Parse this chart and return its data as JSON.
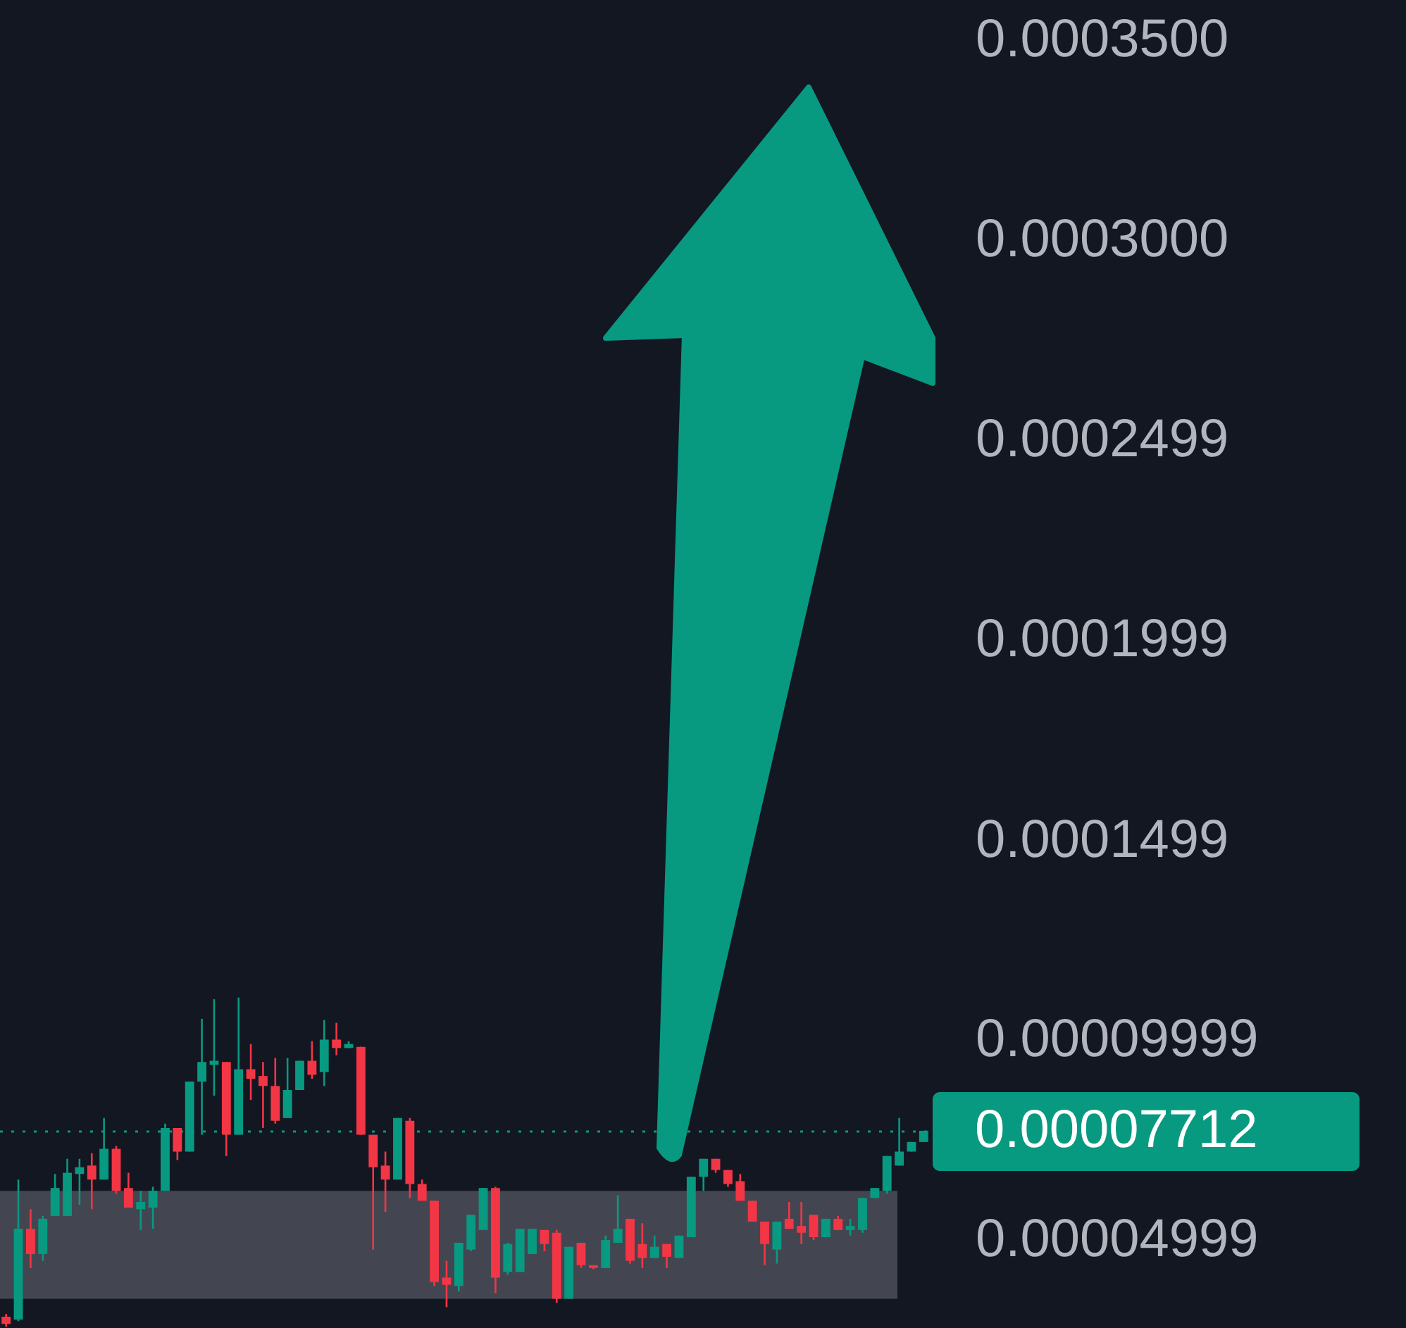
{
  "chart_data": {
    "type": "candlestick",
    "tick_labels": "y",
    "categories": [
      null,
      null,
      null,
      null,
      null,
      null,
      null,
      null,
      null,
      null,
      null,
      null,
      null,
      null,
      null,
      null,
      null,
      null,
      null,
      null,
      null,
      null,
      null,
      null,
      null,
      null,
      null,
      null,
      null,
      null,
      null,
      null,
      null,
      null,
      null,
      null,
      null,
      null,
      null,
      null,
      null,
      null,
      null,
      null,
      null,
      null,
      null,
      null,
      null,
      null,
      null,
      null,
      null,
      null,
      null,
      null,
      null,
      null,
      null,
      null,
      null,
      null,
      null,
      null,
      null,
      null,
      null,
      null,
      null,
      null,
      null,
      null,
      null,
      null,
      null,
      null
    ],
    "ohlc": [
      [
        3.08e-05,
        3.15e-05,
        2.83e-05,
        2.9e-05
      ],
      [
        3.01e-05,
        6.51e-05,
        2.97e-05,
        5.28e-05
      ],
      [
        5.28e-05,
        5.77e-05,
        4.3e-05,
        4.65e-05
      ],
      [
        4.65e-05,
        5.6e-05,
        4.48e-05,
        5.53e-05
      ],
      [
        5.6e-05,
        6.65e-05,
        5.6e-05,
        6.3e-05
      ],
      [
        5.6e-05,
        7.03e-05,
        5.6e-05,
        6.68e-05
      ],
      [
        6.65e-05,
        7.03e-05,
        5.88e-05,
        6.82e-05
      ],
      [
        6.86e-05,
        7.17e-05,
        5.77e-05,
        6.51e-05
      ],
      [
        6.51e-05,
        8.05e-05,
        6.51e-05,
        7.28e-05
      ],
      [
        7.28e-05,
        7.35e-05,
        6.16e-05,
        6.23e-05
      ],
      [
        6.3e-05,
        6.68e-05,
        5.81e-05,
        5.81e-05
      ],
      [
        5.77e-05,
        6.23e-05,
        5.25e-05,
        5.95e-05
      ],
      [
        5.81e-05,
        6.33e-05,
        5.28e-05,
        6.23e-05
      ],
      [
        6.23e-05,
        7.91e-05,
        6.23e-05,
        7.8e-05
      ],
      [
        7.8e-05,
        7.8e-05,
        7e-05,
        7.21e-05
      ],
      [
        7.21e-05,
        8.96e-05,
        7.21e-05,
        8.96e-05
      ],
      [
        8.96e-05,
        0.0001053,
        7.63e-05,
        9.45e-05
      ],
      [
        9.38e-05,
        0.0001102,
        8.61e-05,
        9.48e-05
      ],
      [
        9.45e-05,
        9.45e-05,
        7.1e-05,
        7.63e-05
      ],
      [
        7.63e-05,
        0.0001106,
        7.63e-05,
        9.27e-05
      ],
      [
        9.27e-05,
        9.9e-05,
        8.5e-05,
        9.03e-05
      ],
      [
        9.1e-05,
        9.45e-05,
        7.8e-05,
        8.85e-05
      ],
      [
        8.85e-05,
        9.55e-05,
        7.91e-05,
        7.98e-05
      ],
      [
        8.05e-05,
        9.55e-05,
        8.05e-05,
        8.75e-05
      ],
      [
        8.75e-05,
        9.48e-05,
        8.75e-05,
        9.48e-05
      ],
      [
        9.48e-05,
        9.97e-05,
        9.03e-05,
        9.13e-05
      ],
      [
        9.2e-05,
        0.000105,
        8.85e-05,
        0.0001001
      ],
      [
        0.0001001,
        0.0001043,
        9.62e-05,
        9.8e-05
      ],
      [
        9.8e-05,
        9.97e-05,
        9.8e-05,
        9.9e-05
      ],
      [
        9.83e-05,
        9.83e-05,
        7.63e-05,
        7.63e-05
      ],
      [
        7.63e-05,
        7.63e-05,
        4.76e-05,
        6.82e-05
      ],
      [
        6.86e-05,
        7.21e-05,
        5.7e-05,
        6.51e-05
      ],
      [
        6.51e-05,
        8.05e-05,
        6.51e-05,
        8.05e-05
      ],
      [
        7.98e-05,
        8.05e-05,
        6.05e-05,
        6.4e-05
      ],
      [
        6.4e-05,
        6.51e-05,
        5.98e-05,
        5.98e-05
      ],
      [
        5.98e-05,
        5.98e-05,
        3.85e-05,
        3.95e-05
      ],
      [
        4.06e-05,
        4.48e-05,
        3.32e-05,
        3.88e-05
      ],
      [
        3.85e-05,
        4.93e-05,
        3.71e-05,
        4.93e-05
      ],
      [
        4.76e-05,
        5.63e-05,
        4.72e-05,
        5.63e-05
      ],
      [
        5.25e-05,
        6.3e-05,
        5.25e-05,
        6.3e-05
      ],
      [
        6.3e-05,
        6.33e-05,
        3.67e-05,
        4.06e-05
      ],
      [
        4.2e-05,
        4.93e-05,
        4.13e-05,
        4.9e-05
      ],
      [
        4.2e-05,
        5.28e-05,
        4.2e-05,
        5.28e-05
      ],
      [
        4.65e-05,
        5.28e-05,
        4.65e-05,
        5.28e-05
      ],
      [
        5.25e-05,
        5.25e-05,
        4.72e-05,
        4.9e-05
      ],
      [
        5.18e-05,
        5.25e-05,
        3.43e-05,
        3.53e-05
      ],
      [
        3.53e-05,
        4.83e-05,
        3.53e-05,
        4.83e-05
      ],
      [
        4.93e-05,
        4.93e-05,
        4.3e-05,
        4.37e-05
      ],
      [
        4.37e-05,
        4.37e-05,
        4.27e-05,
        4.3e-05
      ],
      [
        4.3e-05,
        5.11e-05,
        4.3e-05,
        5e-05
      ],
      [
        4.93e-05,
        6.12e-05,
        4.93e-05,
        5.28e-05
      ],
      [
        5.53e-05,
        5.53e-05,
        4.41e-05,
        4.48e-05
      ],
      [
        4.9e-05,
        5.42e-05,
        4.3e-05,
        4.55e-05
      ],
      [
        4.55e-05,
        5.11e-05,
        4.55e-05,
        4.83e-05
      ],
      [
        4.9e-05,
        4.9e-05,
        4.3e-05,
        4.58e-05
      ],
      [
        4.55e-05,
        5.11e-05,
        4.55e-05,
        5.11e-05
      ],
      [
        5.07e-05,
        6.58e-05,
        5.07e-05,
        6.58e-05
      ],
      [
        6.58e-05,
        7.03e-05,
        6.23e-05,
        7.03e-05
      ],
      [
        7.03e-05,
        7.03e-05,
        6.68e-05,
        6.75e-05
      ],
      [
        6.75e-05,
        6.75e-05,
        6.33e-05,
        6.4e-05
      ],
      [
        6.47e-05,
        6.65e-05,
        5.98e-05,
        5.98e-05
      ],
      [
        5.98e-05,
        5.98e-05,
        5.46e-05,
        5.46e-05
      ],
      [
        5.46e-05,
        5.46e-05,
        4.37e-05,
        4.9e-05
      ],
      [
        4.76e-05,
        5.46e-05,
        4.41e-05,
        5.46e-05
      ],
      [
        5.53e-05,
        5.95e-05,
        5.28e-05,
        5.28e-05
      ],
      [
        5.35e-05,
        5.95e-05,
        4.9e-05,
        5.18e-05
      ],
      [
        5.63e-05,
        5.63e-05,
        5e-05,
        5.07e-05
      ],
      [
        5.07e-05,
        5.53e-05,
        5.07e-05,
        5.53e-05
      ],
      [
        5.53e-05,
        5.6e-05,
        5.25e-05,
        5.25e-05
      ],
      [
        5.25e-05,
        5.53e-05,
        5.11e-05,
        5.35e-05
      ],
      [
        5.25e-05,
        6.05e-05,
        5.18e-05,
        6.05e-05
      ],
      [
        6.05e-05,
        6.3e-05,
        6.05e-05,
        6.3e-05
      ],
      [
        6.23e-05,
        7.1e-05,
        6.16e-05,
        7.1e-05
      ],
      [
        6.86e-05,
        8.05e-05,
        6.86e-05,
        7.21e-05
      ],
      [
        7.21e-05,
        7.45e-05,
        7.21e-05,
        7.45e-05
      ],
      [
        7.45e-05,
        7.73e-05,
        7.45e-05,
        7.73e-05
      ]
    ],
    "colors": [
      "#f23645",
      "#089981",
      "#f23645",
      "#089981",
      "#089981",
      "#089981",
      "#089981",
      "#f23645",
      "#089981",
      "#f23645",
      "#f23645",
      "#089981",
      "#089981",
      "#089981",
      "#f23645",
      "#089981",
      "#089981",
      "#089981",
      "#f23645",
      "#089981",
      "#f23645",
      "#f23645",
      "#f23645",
      "#089981",
      "#089981",
      "#f23645",
      "#089981",
      "#f23645",
      "#089981",
      "#f23645",
      "#f23645",
      "#f23645",
      "#089981",
      "#f23645",
      "#f23645",
      "#f23645",
      "#f23645",
      "#089981",
      "#089981",
      "#089981",
      "#f23645",
      "#089981",
      "#089981",
      "#089981",
      "#f23645",
      "#f23645",
      "#089981",
      "#f23645",
      "#f23645",
      "#089981",
      "#089981",
      "#f23645",
      "#f23645",
      "#089981",
      "#f23645",
      "#089981",
      "#089981",
      "#089981",
      "#f23645",
      "#f23645",
      "#f23645",
      "#f23645",
      "#f23645",
      "#089981",
      "#f23645",
      "#f23645",
      "#f23645",
      "#089981",
      "#f23645",
      "#089981",
      "#089981",
      "#089981",
      "#089981",
      "#089981",
      "#089981",
      "#089981"
    ],
    "ylim": [
      2.8e-05,
      0.00036
    ],
    "yticks": [
      {
        "value": 4.999e-05,
        "label": "0.00004999"
      },
      {
        "value": 9.999e-05,
        "label": "0.00009999"
      },
      0.0001499,
      0.0001999,
      0.0002499,
      {
        "value": 0.0003,
        "label": "0.0003000"
      },
      {
        "value": 0.00035,
        "label": "0.0003500"
      }
    ],
    "ref_lines": [
      {
        "axis": "y",
        "value": 7.712e-05,
        "label": "0.00007712",
        "color": "#089981",
        "line_style": "dotted"
      }
    ],
    "bands": [
      {
        "axis": "y",
        "from": 3.53e-05,
        "to": 6.23e-05,
        "color": "#434651"
      }
    ]
  }
}
